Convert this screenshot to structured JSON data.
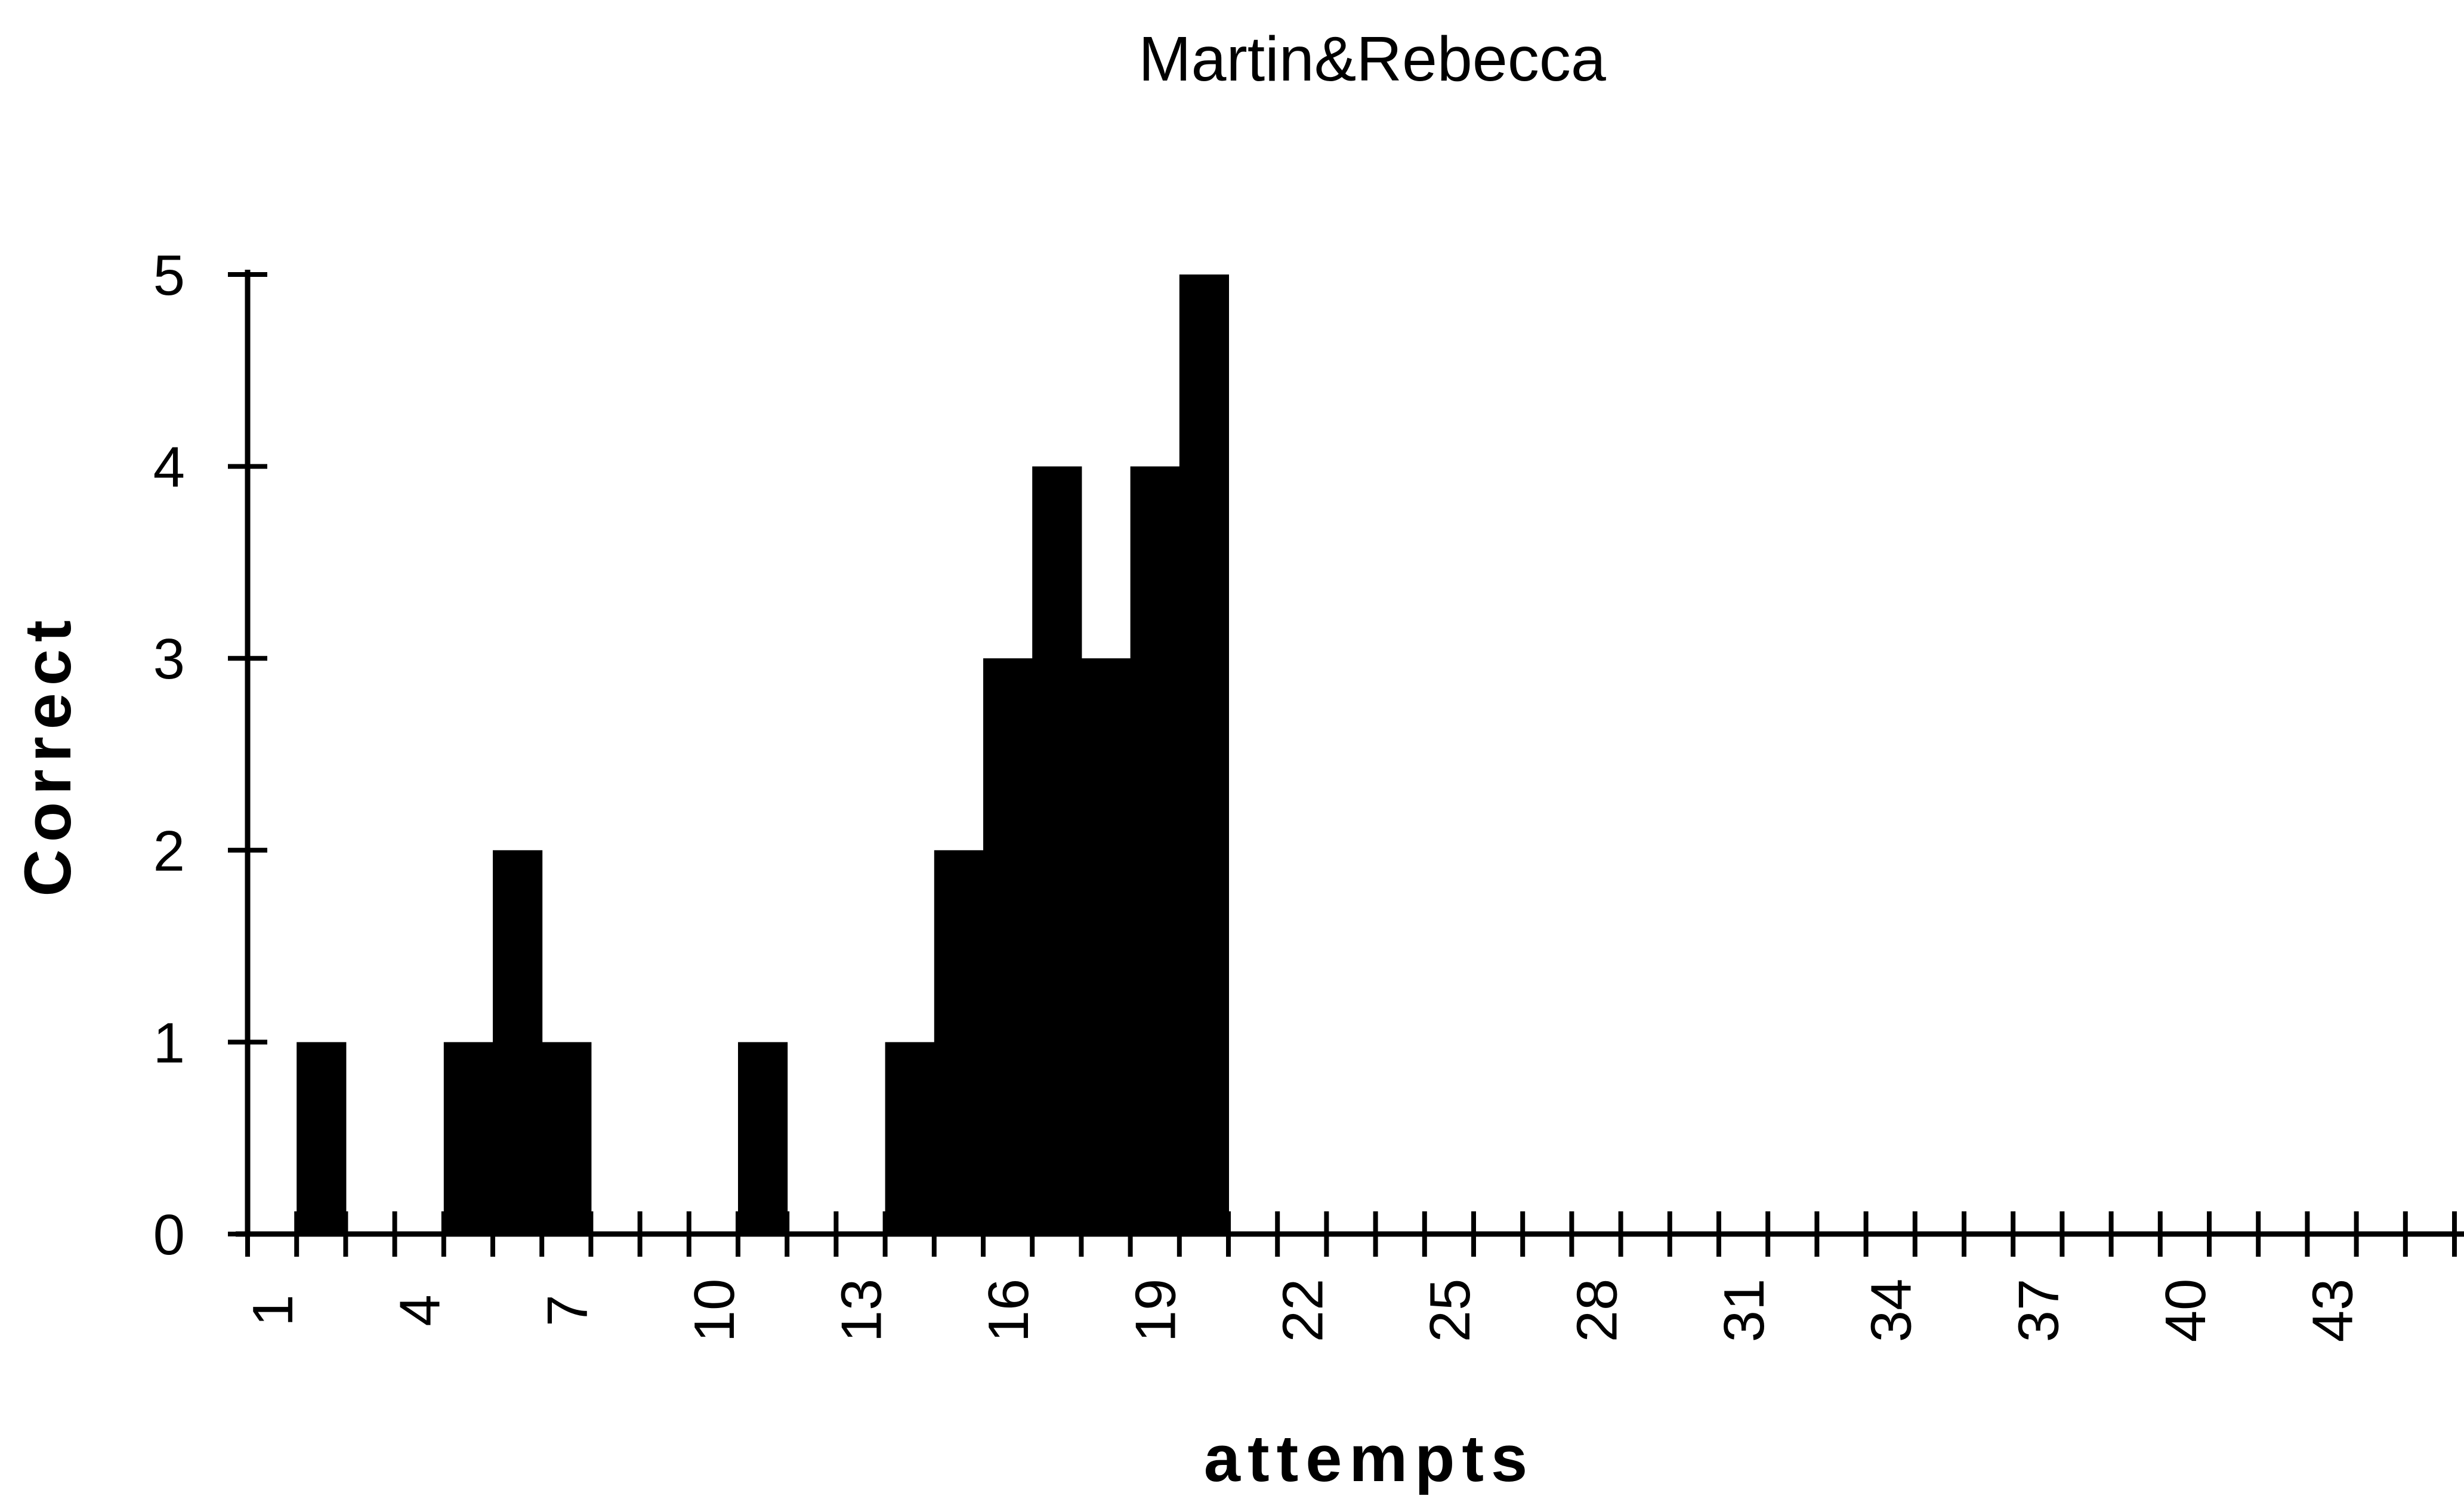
{
  "chart_data": {
    "type": "bar",
    "title": "Martin&Rebecca",
    "xlabel": "attempts",
    "ylabel": "Correct",
    "x": [
      1,
      2,
      3,
      4,
      5,
      6,
      7,
      8,
      9,
      10,
      11,
      12,
      13,
      14,
      15,
      16,
      17,
      18,
      19,
      20,
      21,
      22,
      23,
      24,
      25,
      26,
      27,
      28,
      29,
      30,
      31,
      32,
      33,
      34,
      35,
      36,
      37,
      38,
      39,
      40,
      41,
      42,
      43,
      44,
      45,
      46,
      47
    ],
    "values": [
      0,
      1,
      0,
      0,
      1,
      2,
      1,
      0,
      0,
      0,
      1,
      0,
      0,
      1,
      2,
      3,
      4,
      3,
      4,
      5,
      0,
      0,
      0,
      0,
      0,
      0,
      0,
      0,
      0,
      0,
      0,
      0,
      0,
      0,
      0,
      0,
      0,
      0,
      0,
      0,
      0,
      0,
      0,
      0,
      0,
      0,
      0
    ],
    "x_tick_labels": [
      "1",
      "4",
      "7",
      "10",
      "13",
      "16",
      "19",
      "22",
      "25",
      "28",
      "31",
      "34",
      "37",
      "40",
      "43"
    ],
    "y_tick_labels": [
      "0",
      "1",
      "2",
      "3",
      "4",
      "5"
    ],
    "ylim": [
      0,
      5
    ],
    "grid": false,
    "bar_color": "#000000"
  }
}
